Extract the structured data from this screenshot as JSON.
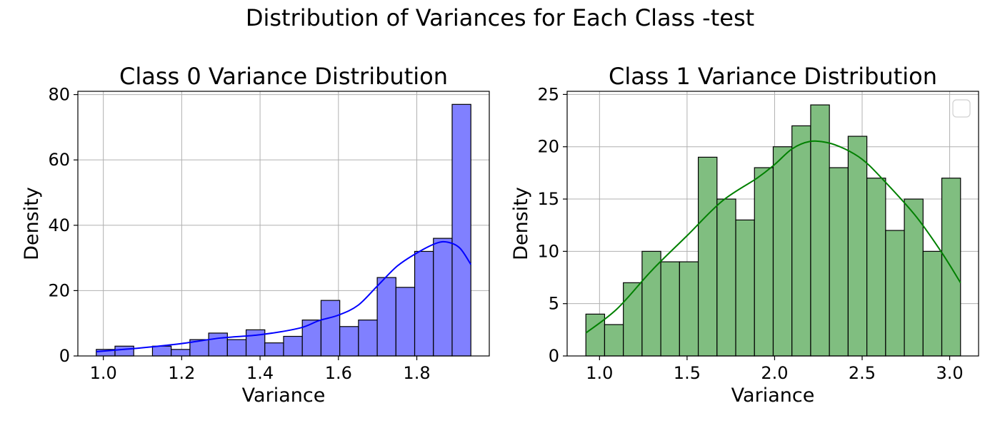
{
  "figure": {
    "suptitle": "Distribution of Variances for Each Class -test"
  },
  "chart_data": [
    {
      "type": "bar",
      "subtype": "histogram_with_kde",
      "title": "Class 0 Variance Distribution",
      "xlabel": "Variance",
      "ylabel": "Density",
      "xlim": [
        0.935,
        1.985
      ],
      "ylim": [
        0,
        81
      ],
      "xticks": [
        1.0,
        1.2,
        1.4,
        1.6,
        1.8
      ],
      "xtick_labels": [
        "1.0",
        "1.2",
        "1.4",
        "1.6",
        "1.8"
      ],
      "yticks": [
        0,
        20,
        40,
        60,
        80
      ],
      "ytick_labels": [
        "0",
        "20",
        "40",
        "60",
        "80"
      ],
      "grid": true,
      "bar_color": "#8080ff",
      "edge_color": "#000000",
      "kde_color": "#0000ff",
      "bin_edges": [
        0.982,
        1.0298,
        1.0776,
        1.1254,
        1.1732,
        1.221,
        1.2688,
        1.3166,
        1.3644,
        1.4122,
        1.46,
        1.5078,
        1.5556,
        1.6034,
        1.6512,
        1.699,
        1.7468,
        1.7946,
        1.8424,
        1.8902,
        1.938
      ],
      "values": [
        2,
        3,
        0,
        3,
        2,
        5,
        7,
        5,
        8,
        4,
        6,
        11,
        17,
        9,
        11,
        24,
        21,
        32,
        36,
        77
      ],
      "kde": {
        "x": [
          0.982,
          1.05,
          1.1,
          1.2,
          1.3,
          1.4,
          1.5,
          1.55,
          1.6,
          1.65,
          1.7,
          1.75,
          1.8,
          1.85,
          1.88,
          1.91,
          1.938
        ],
        "y": [
          1.3,
          2.0,
          2.5,
          3.8,
          5.5,
          6.5,
          8.5,
          10.8,
          12.5,
          15.5,
          21.5,
          27.5,
          31.5,
          34.5,
          34.8,
          33.0,
          28.0
        ]
      }
    },
    {
      "type": "bar",
      "subtype": "histogram_with_kde",
      "title": "Class 1 Variance Distribution",
      "xlabel": "Variance",
      "ylabel": "Density",
      "xlim": [
        0.815,
        3.165
      ],
      "ylim": [
        0,
        25.3
      ],
      "xticks": [
        1.0,
        1.5,
        2.0,
        2.5,
        3.0
      ],
      "xtick_labels": [
        "1.0",
        "1.5",
        "2.0",
        "2.5",
        "3.0"
      ],
      "yticks": [
        0,
        5,
        10,
        15,
        20,
        25
      ],
      "ytick_labels": [
        "0",
        "5",
        "10",
        "15",
        "20",
        "25"
      ],
      "grid": true,
      "legend": "top-right (empty)",
      "bar_color": "#80be80",
      "edge_color": "#000000",
      "kde_color": "#008000",
      "bin_edges": [
        0.922,
        1.029,
        1.136,
        1.243,
        1.35,
        1.457,
        1.564,
        1.671,
        1.778,
        1.885,
        1.992,
        2.099,
        2.206,
        2.313,
        2.42,
        2.527,
        2.634,
        2.741,
        2.848,
        2.955,
        3.062
      ],
      "values": [
        4,
        3,
        7,
        10,
        9,
        9,
        19,
        15,
        13,
        18,
        20,
        22,
        24,
        18,
        21,
        17,
        12,
        15,
        10,
        17
      ],
      "kde": {
        "x": [
          0.922,
          1.1,
          1.3,
          1.5,
          1.7,
          1.9,
          2.0,
          2.1,
          2.2,
          2.3,
          2.4,
          2.5,
          2.6,
          2.8,
          2.95,
          3.062
        ],
        "y": [
          2.2,
          4.5,
          8.2,
          11.5,
          14.8,
          17.0,
          18.3,
          19.8,
          20.5,
          20.4,
          19.8,
          18.8,
          17.2,
          13.5,
          10.0,
          7.0
        ]
      }
    }
  ]
}
